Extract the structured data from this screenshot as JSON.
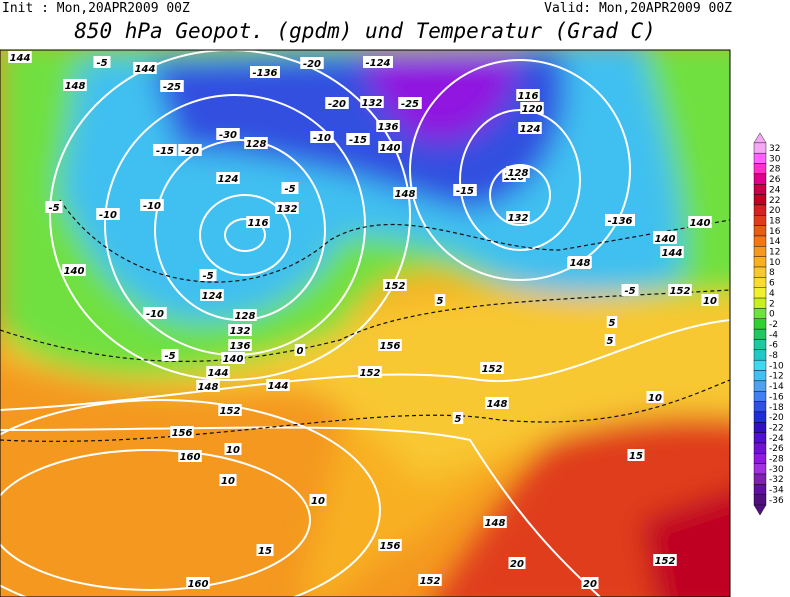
{
  "header": {
    "init": "Init : Mon,20APR2009 00Z",
    "valid": "Valid: Mon,20APR2009 00Z",
    "title": "850 hPa Geopot. (gpdm) und Temperatur (Grad C)"
  },
  "colorbar": {
    "levels": [
      32,
      30,
      28,
      26,
      24,
      22,
      20,
      18,
      16,
      14,
      12,
      10,
      8,
      6,
      4,
      2,
      0,
      -2,
      -4,
      -6,
      -8,
      -10,
      -12,
      -14,
      -16,
      -18,
      -20,
      -22,
      -24,
      -26,
      -28,
      -30,
      -32,
      -34,
      -36
    ],
    "colors": [
      "#f4a8f4",
      "#ff60ff",
      "#ff30c8",
      "#e0008c",
      "#c80048",
      "#c00024",
      "#d42020",
      "#e03c1c",
      "#e85c10",
      "#f07818",
      "#f49820",
      "#f8b020",
      "#f8c830",
      "#f8dc30",
      "#f0f030",
      "#c8f020",
      "#70e040",
      "#30d030",
      "#20c860",
      "#20c8a0",
      "#20c8c8",
      "#40d8f0",
      "#40c0f0",
      "#50a0f0",
      "#4080f0",
      "#3050e0",
      "#2030d0",
      "#3010c0",
      "#5010d0",
      "#7010d0",
      "#9018e0",
      "#a030e0",
      "#8020b0",
      "#6010a0",
      "#501080"
    ]
  },
  "map": {
    "labels": [
      "144",
      "-5",
      "144",
      "148",
      "-25",
      "-136",
      "-20",
      "-124",
      "116",
      "120",
      "-25",
      "-20",
      "132",
      "-30",
      "128",
      "136",
      "124",
      "-15",
      "-20",
      "-10",
      "140",
      "124",
      "-5",
      "120",
      "116",
      "132",
      "-10",
      "140",
      "148",
      "-15",
      "128",
      "132",
      "-5",
      "-10",
      "-15",
      "140",
      "-136",
      "140",
      "144",
      "148",
      "-5",
      "124",
      "-10",
      "128",
      "132",
      "136",
      "140",
      "144",
      "148",
      "152",
      "-5",
      "0",
      "5",
      "152",
      "156",
      "152",
      "148",
      "152",
      "156",
      "160",
      "10",
      "10",
      "10",
      "15",
      "160",
      "156",
      "148",
      "152",
      "20",
      "20",
      "152",
      "10",
      "15",
      "5",
      "144",
      "140",
      "148",
      "152",
      "-5",
      "5",
      "10",
      "5"
    ]
  }
}
